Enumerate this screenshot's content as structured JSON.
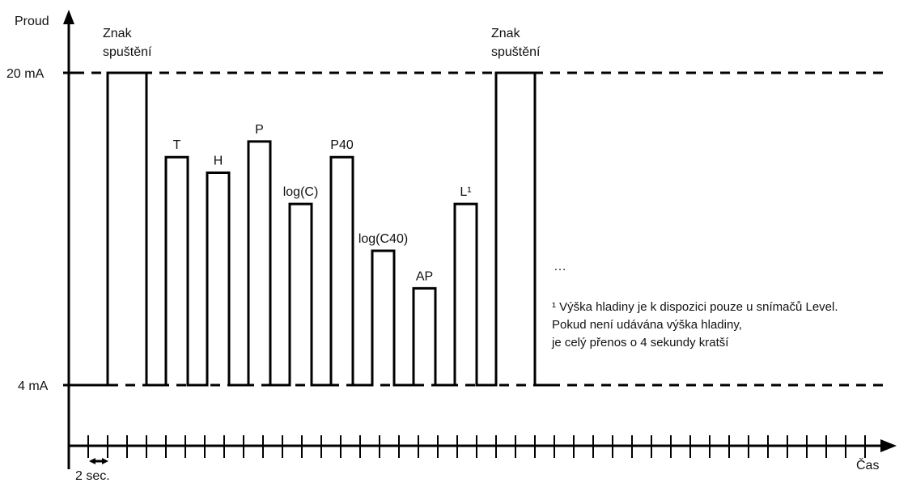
{
  "axes": {
    "y_label": "Proud",
    "x_label": "Čas",
    "level_high": "20 mA",
    "level_low": "4 mA",
    "time_step": "2 sec."
  },
  "pulses": [
    {
      "label": "Znak\nspuštění",
      "level_pct": 100,
      "slots": 2
    },
    {
      "label": "T",
      "level_pct": 73
    },
    {
      "label": "H",
      "level_pct": 68
    },
    {
      "label": "P",
      "level_pct": 78
    },
    {
      "label": "log(C)",
      "level_pct": 58
    },
    {
      "label": "P40",
      "level_pct": 73
    },
    {
      "label": "log(C40)",
      "level_pct": 43
    },
    {
      "label": "AP",
      "level_pct": 31
    },
    {
      "label": "L¹",
      "level_pct": 58
    },
    {
      "label": "Znak\nspuštění",
      "level_pct": 100,
      "slots": 2
    }
  ],
  "ellipsis": "…",
  "footnote": [
    "¹ Výška hladiny je k dispozici pouze u snímačů Level.",
    "Pokud není udávána výška hladiny,",
    "je celý přenos o 4 sekundy kratší"
  ]
}
